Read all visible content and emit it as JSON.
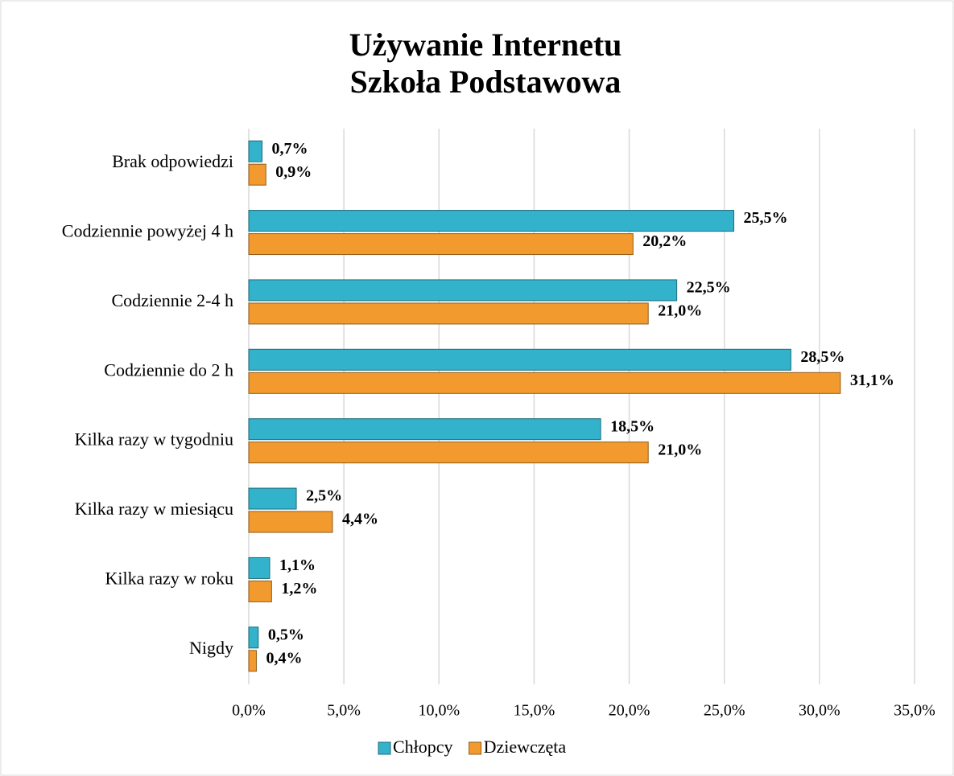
{
  "chart_data": {
    "type": "hbar",
    "title": "Używanie Internetu",
    "subtitle": "Szkoła Podstawowa",
    "categories": [
      "Brak odpowiedzi",
      "Codziennie powyżej 4 h",
      "Codziennie 2-4 h",
      "Codziennie do 2 h",
      "Kilka razy w tygodniu",
      "Kilka razy w miesiącu",
      "Kilka razy w roku",
      "Nigdy"
    ],
    "series": [
      {
        "name": "Chłopcy",
        "color": "#33b2cc",
        "values": [
          0.7,
          25.5,
          22.5,
          28.5,
          18.5,
          2.5,
          1.1,
          0.5
        ],
        "value_labels": [
          "0,7%",
          "25,5%",
          "22,5%",
          "28,5%",
          "18,5%",
          "2,5%",
          "1,1%",
          "0,5%"
        ]
      },
      {
        "name": "Dziewczęta",
        "color": "#f29a2e",
        "values": [
          0.9,
          20.2,
          21.0,
          31.1,
          21.0,
          4.4,
          1.2,
          0.4
        ],
        "value_labels": [
          "0,9%",
          "20,2%",
          "21,0%",
          "31,1%",
          "21,0%",
          "4,4%",
          "1,2%",
          "0,4%"
        ]
      }
    ],
    "xlim": [
      0,
      35
    ],
    "xticks": [
      {
        "value": 0,
        "label": "0,0%"
      },
      {
        "value": 5,
        "label": "5,0%"
      },
      {
        "value": 10,
        "label": "10,0%"
      },
      {
        "value": 15,
        "label": "15,0%"
      },
      {
        "value": 20,
        "label": "20,0%"
      },
      {
        "value": 25,
        "label": "25,0%"
      },
      {
        "value": 30,
        "label": "30,0%"
      },
      {
        "value": 35,
        "label": "35,0%"
      }
    ],
    "grid": true,
    "legend": "bottom"
  }
}
